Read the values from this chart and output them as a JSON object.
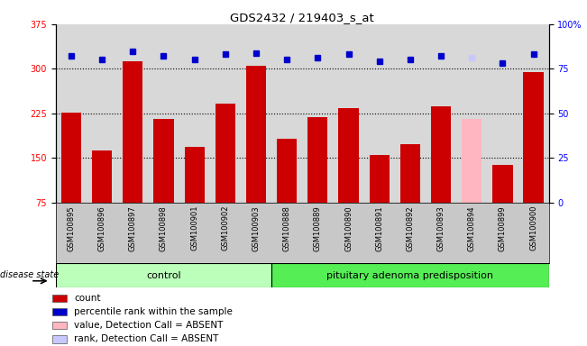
{
  "title": "GDS2432 / 219403_s_at",
  "samples": [
    "GSM100895",
    "GSM100896",
    "GSM100897",
    "GSM100898",
    "GSM100901",
    "GSM100902",
    "GSM100903",
    "GSM100888",
    "GSM100889",
    "GSM100890",
    "GSM100891",
    "GSM100892",
    "GSM100893",
    "GSM100894",
    "GSM100899",
    "GSM100900"
  ],
  "bar_values": [
    226,
    163,
    312,
    215,
    168,
    242,
    305,
    182,
    218,
    233,
    155,
    173,
    237,
    215,
    138,
    295
  ],
  "bar_colors": [
    "#cc0000",
    "#cc0000",
    "#cc0000",
    "#cc0000",
    "#cc0000",
    "#cc0000",
    "#cc0000",
    "#cc0000",
    "#cc0000",
    "#cc0000",
    "#cc0000",
    "#cc0000",
    "#cc0000",
    "#ffb6c1",
    "#cc0000",
    "#cc0000"
  ],
  "dot_values": [
    82,
    80,
    85,
    82,
    80,
    83,
    84,
    80,
    81,
    83,
    79,
    80,
    82,
    81,
    78,
    83
  ],
  "dot_colors": [
    "#0000cc",
    "#0000cc",
    "#0000cc",
    "#0000cc",
    "#0000cc",
    "#0000cc",
    "#0000cc",
    "#0000cc",
    "#0000cc",
    "#0000cc",
    "#0000cc",
    "#0000cc",
    "#0000cc",
    "#c8c8ff",
    "#0000cc",
    "#0000cc"
  ],
  "ylim_left": [
    75,
    375
  ],
  "ylim_right": [
    0,
    100
  ],
  "yticks_left": [
    75,
    150,
    225,
    300,
    375
  ],
  "yticks_right": [
    0,
    25,
    50,
    75,
    100
  ],
  "ytick_labels_right": [
    "0",
    "25",
    "50",
    "75",
    "100%"
  ],
  "control_count": 7,
  "pituitary_count": 9,
  "group_label_left": "control",
  "group_label_right": "pituitary adenoma predisposition",
  "disease_state_label": "disease state",
  "bgcolor_plot": "#d8d8d8",
  "bgcolor_label": "#c8c8c8",
  "bgcolor_control": "#bbffbb",
  "bgcolor_pituitary": "#55ee55",
  "legend_items": [
    {
      "label": "count",
      "color": "#cc0000"
    },
    {
      "label": "percentile rank within the sample",
      "color": "#0000cc"
    },
    {
      "label": "value, Detection Call = ABSENT",
      "color": "#ffb6c1"
    },
    {
      "label": "rank, Detection Call = ABSENT",
      "color": "#c8c8ff"
    }
  ]
}
